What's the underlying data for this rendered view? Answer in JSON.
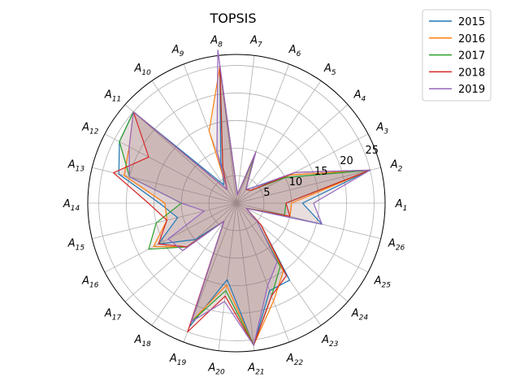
{
  "chart_data": {
    "type": "radar",
    "title": "TOPSIS",
    "categories": [
      "A1",
      "A2",
      "A3",
      "A4",
      "A5",
      "A6",
      "A7",
      "A8",
      "A9",
      "A10",
      "A11",
      "A12",
      "A13",
      "A14",
      "A15",
      "A16",
      "A17",
      "A18",
      "A19",
      "A20",
      "A21",
      "A22",
      "A23",
      "A24",
      "A25",
      "A26"
    ],
    "radial_ticks": [
      5,
      10,
      15,
      20,
      25
    ],
    "rlim": [
      0,
      27
    ],
    "grid": true,
    "legend_position": "top-right outside",
    "fill": {
      "color": "#8b5a5a",
      "opacity": 0.25
    },
    "series": [
      {
        "name": "2015",
        "color": "#1f77b4",
        "values": [
          12,
          25,
          10,
          4.5,
          3,
          9,
          1.5,
          25,
          8,
          4,
          25,
          24,
          22,
          14,
          11,
          16,
          10,
          4,
          24,
          14,
          26,
          17,
          17,
          6,
          2,
          16
        ]
      },
      {
        "name": "2016",
        "color": "#ff7f0e",
        "values": [
          10,
          25,
          11,
          3.5,
          3,
          9,
          1.5,
          25,
          14,
          3,
          25,
          22,
          21,
          13,
          13,
          17,
          12,
          4,
          23,
          15,
          26,
          19,
          15,
          6,
          2,
          10
        ]
      },
      {
        "name": "2017",
        "color": "#2ca02c",
        "values": [
          9,
          25,
          10,
          3.5,
          3,
          9,
          1.5,
          25,
          7,
          3,
          25,
          24,
          20,
          10,
          15,
          18,
          12,
          4,
          23,
          16,
          26,
          18,
          14,
          5,
          2,
          9
        ]
      },
      {
        "name": "2018",
        "color": "#d62728",
        "values": [
          9,
          25,
          12,
          3.5,
          3,
          10,
          1.5,
          25,
          7,
          3,
          25,
          18,
          23,
          16,
          13,
          16,
          12,
          4,
          25,
          17,
          26,
          18,
          16,
          6,
          2,
          10
        ]
      },
      {
        "name": "2019",
        "color": "#9467bd",
        "values": [
          14,
          25,
          12,
          4.5,
          3,
          10,
          1.5,
          28,
          10,
          3,
          25,
          22,
          20,
          10,
          6,
          14,
          13,
          4,
          23,
          18,
          26,
          16,
          13,
          5,
          2,
          16
        ]
      }
    ]
  }
}
